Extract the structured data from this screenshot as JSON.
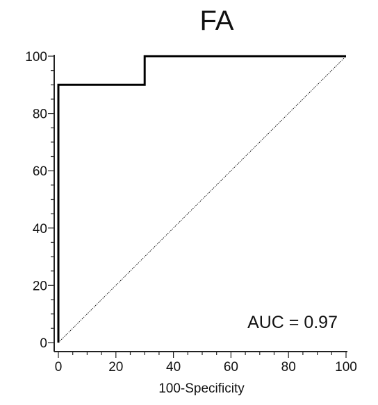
{
  "chart_data": {
    "type": "line",
    "title": "FA",
    "xlabel": "100-Specificity",
    "ylabel": "",
    "xlim": [
      0,
      100
    ],
    "ylim": [
      0,
      100
    ],
    "x_ticks": [
      0,
      20,
      40,
      60,
      80,
      100
    ],
    "y_ticks": [
      0,
      20,
      40,
      60,
      80,
      100
    ],
    "x_tick_labels": [
      "0",
      "20",
      "40",
      "60",
      "80",
      "100"
    ],
    "y_tick_labels": [
      "0",
      "20",
      "40",
      "60",
      "80",
      "100"
    ],
    "minor_tick_step": 5,
    "grid": false,
    "series": [
      {
        "style": "solid-step",
        "color": "#000000",
        "points": [
          [
            0,
            0
          ],
          [
            0,
            90
          ],
          [
            30,
            90
          ],
          [
            30,
            100
          ],
          [
            100,
            100
          ]
        ]
      },
      {
        "style": "dotted-diagonal",
        "color": "#000000",
        "points": [
          [
            0,
            0
          ],
          [
            100,
            100
          ]
        ]
      }
    ],
    "annotation": "AUC = 0.97"
  }
}
